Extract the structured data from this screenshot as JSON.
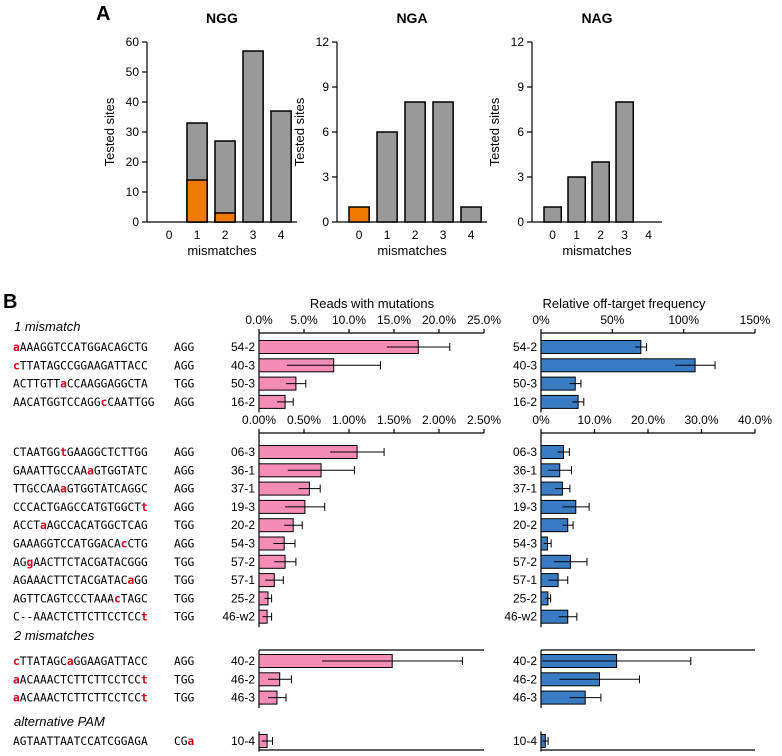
{
  "panel_a": {
    "label": "A",
    "charts": [
      {
        "title": "NGG",
        "ylabel": "Tested sites",
        "xlabel": "mismatches",
        "ylim": [
          0,
          60
        ],
        "yticks": [
          0,
          10,
          20,
          30,
          40,
          50,
          60
        ],
        "categories": [
          "0",
          "1",
          "2",
          "3",
          "4"
        ],
        "gray": [
          0,
          33,
          27,
          57,
          37
        ],
        "orange": [
          0,
          14,
          3,
          0,
          0
        ]
      },
      {
        "title": "NGA",
        "ylabel": "Tested sites",
        "xlabel": "mismatches",
        "ylim": [
          0,
          12
        ],
        "yticks": [
          0,
          3,
          6,
          9,
          12
        ],
        "categories": [
          "0",
          "1",
          "2",
          "3",
          "4"
        ],
        "gray": [
          0,
          6,
          8,
          8,
          1
        ],
        "orange": [
          1,
          0,
          0,
          0,
          0
        ]
      },
      {
        "title": "NAG",
        "ylabel": "Tested sites",
        "xlabel": "mismatches",
        "ylim": [
          0,
          12
        ],
        "yticks": [
          0,
          3,
          6,
          9,
          12
        ],
        "categories": [
          "0",
          "1",
          "2",
          "3",
          "4"
        ],
        "gray": [
          1,
          3,
          4,
          8,
          0
        ],
        "orange": [
          0,
          0,
          0,
          0,
          0
        ]
      }
    ]
  },
  "panel_b": {
    "label": "B",
    "col_titles": {
      "left": "Reads with mutations",
      "right": "Relative off-target frequency"
    },
    "colors": {
      "pink": "#f48cb4",
      "blue": "#3a7cc4",
      "gray": "#999999",
      "orange": "#f07a00",
      "red": "#d0021b"
    },
    "chart_data": [
      {
        "type": "bar",
        "orientation": "horizontal",
        "section": "1 mismatch",
        "left_axis": {
          "ticks": [
            "0.0%",
            "5.0%",
            "10.0%",
            "15.0%",
            "20.0%",
            "25.0%"
          ],
          "max": 25
        },
        "right_axis": {
          "ticks": [
            "0%",
            "50%",
            "100%",
            "150%"
          ],
          "max": 150
        },
        "rows": [
          {
            "seq": [
              "a",
              "AAAGGTCCATGGACAGCTG"
            ],
            "reds": [
              0
            ],
            "pam": "AGG",
            "pam_reds": [],
            "label": "54-2",
            "left": 17.7,
            "left_err": 3.5,
            "right": 70,
            "right_err": 4
          },
          {
            "seq": [
              "c",
              "TTATAGCCGGAAGATTACC"
            ],
            "reds": [
              0
            ],
            "pam": "AGG",
            "pam_reds": [],
            "label": "40-3",
            "left": 8.3,
            "left_err": 5.2,
            "right": 108,
            "right_err": 14
          },
          {
            "seq": [
              "ACTTGTT",
              "a",
              "CCAAGGAGGCTA"
            ],
            "reds": [
              1
            ],
            "pam": "TGG",
            "pam_reds": [],
            "label": "50-3",
            "left": 4.1,
            "left_err": 1.1,
            "right": 24,
            "right_err": 4
          },
          {
            "seq": [
              "AACATGGTCCAGG",
              "c",
              "CAATTGG"
            ],
            "reds": [
              1
            ],
            "pam": "AGG",
            "pam_reds": [],
            "label": "16-2",
            "left": 2.9,
            "left_err": 0.9,
            "right": 26,
            "right_err": 4
          }
        ]
      },
      {
        "type": "bar",
        "orientation": "horizontal",
        "section": "",
        "left_axis": {
          "ticks": [
            "0.00%",
            "0.50%",
            "1.00%",
            "1.50%",
            "2.00%",
            "2.50%"
          ],
          "max": 2.5
        },
        "right_axis": {
          "ticks": [
            "0%",
            "10.0%",
            "20.0%",
            "30.0%",
            "40.0%"
          ],
          "max": 40
        },
        "rows": [
          {
            "seq": [
              "CTAATGG",
              "t",
              "GAAGGCTCTTGG"
            ],
            "reds": [
              1
            ],
            "pam": "AGG",
            "pam_reds": [],
            "label": "06-3",
            "left": 1.09,
            "left_err": 0.3,
            "right": 4.2,
            "right_err": 1.1
          },
          {
            "seq": [
              "GAAATTGCCAA",
              "a",
              "GTGGTATC"
            ],
            "reds": [
              1
            ],
            "pam": "AGG",
            "pam_reds": [],
            "label": "36-1",
            "left": 0.69,
            "left_err": 0.37,
            "right": 3.5,
            "right_err": 2.2
          },
          {
            "seq": [
              "TTGCCAA",
              "a",
              "GTGGTATCAGGC"
            ],
            "reds": [
              1
            ],
            "pam": "AGG",
            "pam_reds": [],
            "label": "37-1",
            "left": 0.56,
            "left_err": 0.12,
            "right": 4.0,
            "right_err": 1.4
          },
          {
            "seq": [
              "CCCACTGAGCCATGTGGCT",
              "t"
            ],
            "reds": [
              1
            ],
            "pam": "AGG",
            "pam_reds": [],
            "label": "19-3",
            "left": 0.51,
            "left_err": 0.22,
            "right": 6.5,
            "right_err": 2.5
          },
          {
            "seq": [
              "ACCT",
              "a",
              "AGCCACATGGCTCAG"
            ],
            "reds": [
              1
            ],
            "pam": "TGG",
            "pam_reds": [],
            "label": "20-2",
            "left": 0.38,
            "left_err": 0.1,
            "right": 5.0,
            "right_err": 1.0
          },
          {
            "seq": [
              "GAAAGGTCCATGGACA",
              "c",
              "CTG"
            ],
            "reds": [
              1
            ],
            "pam": "AGG",
            "pam_reds": [],
            "label": "54-3",
            "left": 0.28,
            "left_err": 0.12,
            "right": 1.2,
            "right_err": 0.7
          },
          {
            "seq": [
              "AG",
              "g",
              "AACTTCTACGATACGGG"
            ],
            "reds": [
              1
            ],
            "pam": "TGG",
            "pam_reds": [],
            "label": "57-2",
            "left": 0.29,
            "left_err": 0.12,
            "right": 5.5,
            "right_err": 3.1
          },
          {
            "seq": [
              "AGAAACTTCTACGATAC",
              "a",
              "GG"
            ],
            "reds": [
              1
            ],
            "pam": "TGG",
            "pam_reds": [],
            "label": "57-1",
            "left": 0.17,
            "left_err": 0.1,
            "right": 3.2,
            "right_err": 1.8
          },
          {
            "seq": [
              "AGTTCAGTCCCTAAA",
              "c",
              "TAGC"
            ],
            "reds": [
              1
            ],
            "pam": "TGG",
            "pam_reds": [],
            "label": "25-2",
            "left": 0.1,
            "left_err": 0.04,
            "right": 1.3,
            "right_err": 0.5
          },
          {
            "seq": [
              "C--AAACTCTTCTTCCTCC",
              "t"
            ],
            "reds": [
              1
            ],
            "pam": "TGG",
            "pam_reds": [],
            "label": "46-w2",
            "left": 0.09,
            "left_err": 0.05,
            "right": 5.0,
            "right_err": 1.7
          }
        ]
      },
      {
        "type": "bar",
        "orientation": "horizontal",
        "section": "2 mismatches",
        "left_axis": {
          "ticks": [],
          "max": 25
        },
        "right_axis": {
          "ticks": [],
          "max": 150
        },
        "rows": [
          {
            "seq": [
              "c",
              "TTATAGC",
              "a",
              "GGAAGATTACC"
            ],
            "reds": [
              0,
              2
            ],
            "pam": "AGG",
            "pam_reds": [],
            "label": "40-2",
            "left": 14.8,
            "left_err": 7.8,
            "right": 53,
            "right_err": 52
          },
          {
            "seq": [
              "a",
              "ACAAACTCTTCTTCCTCC",
              "t"
            ],
            "reds": [
              0,
              2
            ],
            "pam": "TGG",
            "pam_reds": [],
            "label": "46-2",
            "left": 2.3,
            "left_err": 1.3,
            "right": 41,
            "right_err": 28
          },
          {
            "seq": [
              "a",
              "ACAAACTCTTCTTCCTCC",
              "t"
            ],
            "reds": [
              0,
              2
            ],
            "pam": "TGG",
            "pam_reds": [],
            "label": "46-3",
            "left": 2.0,
            "left_err": 1.0,
            "right": 31,
            "right_err": 11
          }
        ]
      },
      {
        "type": "bar",
        "orientation": "horizontal",
        "section": "alternative PAM",
        "left_axis": {
          "ticks": [],
          "max": 25
        },
        "right_axis": {
          "ticks": [],
          "max": 150
        },
        "rows": [
          {
            "seq": [
              "AGTAATTAATCCATCGGAGA"
            ],
            "reds": [],
            "pam": [
              "CG",
              "a"
            ],
            "pam_reds": [
              1
            ],
            "label": "10-4",
            "left": 0.9,
            "left_err": 0.6,
            "right": 3,
            "right_err": 2
          }
        ]
      }
    ]
  }
}
